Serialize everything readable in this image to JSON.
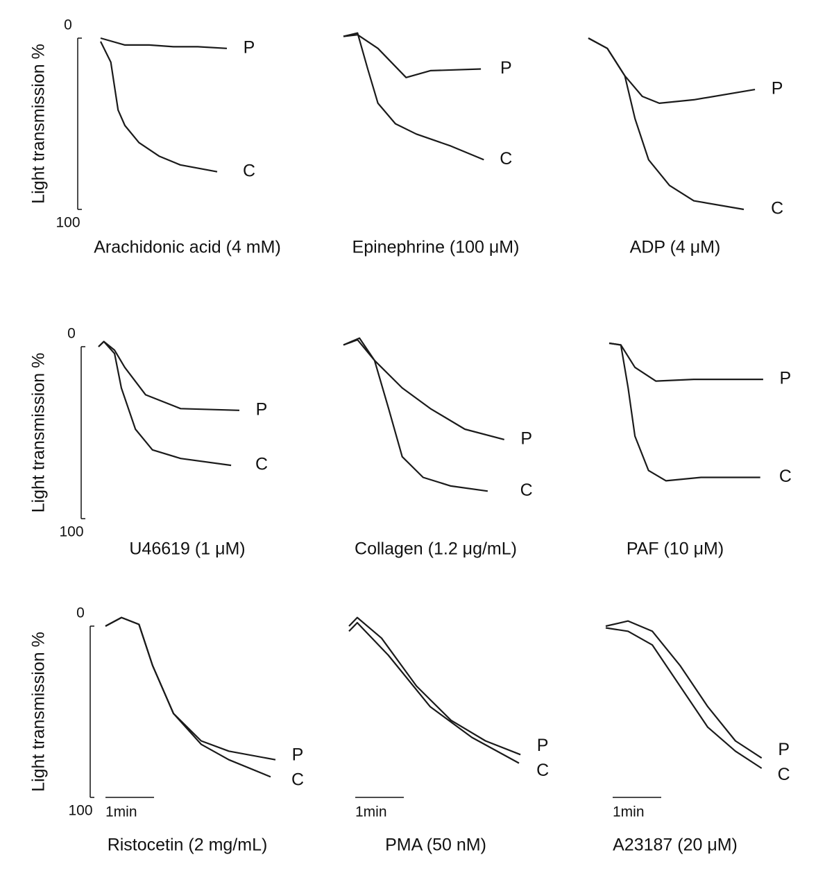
{
  "chart_data": [
    {
      "type": "line",
      "title": "Arachidonic acid (4 mM)",
      "ylabel": "Light transmission %",
      "xlim": [
        0,
        3.5
      ],
      "ylim": [
        100,
        0
      ],
      "yticks": [
        0,
        100
      ],
      "series": [
        {
          "name": "P",
          "color": "#1a1a1a",
          "x": [
            0,
            0.5,
            1,
            1.5,
            2,
            2.6
          ],
          "values": [
            0,
            4,
            4,
            5,
            5,
            6
          ]
        },
        {
          "name": "C",
          "color": "#1a1a1a",
          "x": [
            0,
            0.21,
            0.36,
            0.5,
            0.79,
            1.21,
            1.64,
            2.4
          ],
          "values": [
            2,
            14,
            42,
            51,
            61,
            69,
            74,
            78
          ]
        }
      ]
    },
    {
      "type": "line",
      "title": "Epinephrine (100 μM)",
      "xlim": [
        0,
        3.5
      ],
      "ylim": [
        100,
        0
      ],
      "series": [
        {
          "name": "P",
          "color": "#1a1a1a",
          "x": [
            0,
            0.29,
            0.71,
            1.29,
            1.79,
            2.83
          ],
          "values": [
            -1,
            -2,
            6,
            23,
            19,
            18
          ]
        },
        {
          "name": "C",
          "color": "#1a1a1a",
          "x": [
            0,
            0.29,
            0.5,
            0.71,
            1.07,
            1.5,
            2.21,
            2.89
          ],
          "values": [
            -1,
            -3,
            18,
            38,
            50,
            56,
            63,
            71
          ]
        }
      ]
    },
    {
      "type": "line",
      "title": "ADP (4 μM)",
      "xlim": [
        0,
        3.5
      ],
      "ylim": [
        100,
        0
      ],
      "series": [
        {
          "name": "P",
          "color": "#1a1a1a",
          "x": [
            0,
            0.39,
            0.75,
            1.11,
            1.46,
            2.17,
            3.43
          ],
          "values": [
            0,
            6,
            22,
            34,
            38,
            36,
            30
          ]
        },
        {
          "name": "C",
          "color": "#1a1a1a",
          "x": [
            0,
            0.39,
            0.75,
            0.96,
            1.24,
            1.67,
            2.17,
            3.2
          ],
          "values": [
            0,
            6,
            22,
            47,
            71,
            86,
            95,
            100
          ]
        }
      ]
    },
    {
      "type": "line",
      "title": "U46619 (1 μM)",
      "ylabel": "Light transmission %",
      "xlim": [
        0,
        3.5
      ],
      "ylim": [
        100,
        0
      ],
      "yticks": [
        0,
        100
      ],
      "series": [
        {
          "name": "P",
          "color": "#1a1a1a",
          "x": [
            0,
            0.11,
            0.33,
            0.54,
            0.97,
            1.69,
            2.9
          ],
          "values": [
            0,
            -3,
            2,
            12,
            28,
            36,
            37
          ]
        },
        {
          "name": "C",
          "color": "#1a1a1a",
          "x": [
            0,
            0.11,
            0.33,
            0.47,
            0.76,
            1.11,
            1.69,
            2.73
          ],
          "values": [
            0,
            -3,
            4,
            24,
            48,
            60,
            65,
            69
          ]
        }
      ]
    },
    {
      "type": "line",
      "title": "Collagen (1.2 μg/mL)",
      "xlim": [
        0,
        3.5
      ],
      "ylim": [
        100,
        0
      ],
      "series": [
        {
          "name": "P",
          "color": "#1a1a1a",
          "x": [
            0,
            0.29,
            0.64,
            1.21,
            1.79,
            2.5,
            3.31
          ],
          "values": [
            -1,
            -4,
            8,
            24,
            36,
            48,
            54
          ]
        },
        {
          "name": "C",
          "color": "#1a1a1a",
          "x": [
            0,
            0.33,
            0.64,
            0.93,
            1.21,
            1.64,
            2.21,
            2.97
          ],
          "values": [
            -1,
            -5,
            8,
            36,
            64,
            76,
            81,
            84
          ]
        }
      ]
    },
    {
      "type": "line",
      "title": "PAF (10 μM)",
      "xlim": [
        0,
        3.5
      ],
      "ylim": [
        100,
        0
      ],
      "series": [
        {
          "name": "P",
          "color": "#1a1a1a",
          "x": [
            0,
            0.24,
            0.53,
            0.96,
            1.74,
            3.17
          ],
          "values": [
            -2,
            -1,
            12,
            20,
            19,
            19
          ]
        },
        {
          "name": "C",
          "color": "#1a1a1a",
          "x": [
            0,
            0.24,
            0.39,
            0.53,
            0.81,
            1.17,
            1.89,
            3.11
          ],
          "values": [
            -2,
            -1,
            24,
            52,
            72,
            78,
            76,
            76
          ]
        }
      ]
    },
    {
      "type": "line",
      "title": "Ristocetin (2 mg/mL)",
      "ylabel": "Light transmission %",
      "xlim": [
        0,
        3.5
      ],
      "ylim": [
        100,
        0
      ],
      "yticks": [
        0,
        100
      ],
      "scale_bar": {
        "value": 1,
        "label": "1min"
      },
      "series": [
        {
          "name": "P",
          "color": "#1a1a1a",
          "x": [
            0,
            0.33,
            0.69,
            0.97,
            1.4,
            1.97,
            2.54,
            3.5
          ],
          "values": [
            0,
            -5,
            -1,
            23,
            51,
            67,
            73,
            78
          ]
        },
        {
          "name": "C",
          "color": "#1a1a1a",
          "x": [
            0,
            0.33,
            0.69,
            0.97,
            1.4,
            1.97,
            2.54,
            3.4
          ],
          "values": [
            0,
            -5,
            -1,
            23,
            51,
            69,
            78,
            88
          ]
        }
      ]
    },
    {
      "type": "line",
      "title": "PMA (50 nM)",
      "xlim": [
        0,
        3.5
      ],
      "ylim": [
        100,
        0
      ],
      "scale_bar": {
        "value": 1,
        "label": "1min"
      },
      "series": [
        {
          "name": "P",
          "color": "#1a1a1a",
          "x": [
            0,
            0.17,
            0.67,
            1.39,
            2.1,
            2.81,
            3.53
          ],
          "values": [
            0,
            -5,
            7,
            35,
            55,
            67,
            75
          ]
        },
        {
          "name": "C",
          "color": "#1a1a1a",
          "x": [
            0,
            0.17,
            0.81,
            1.67,
            2.53,
            3.5
          ],
          "values": [
            3,
            -2,
            17,
            47,
            65,
            80
          ]
        }
      ]
    },
    {
      "type": "line",
      "title": "A23187 (20 μM)",
      "xlim": [
        0,
        3.5
      ],
      "ylim": [
        100,
        0
      ],
      "scale_bar": {
        "value": 1,
        "label": "1min"
      },
      "series": [
        {
          "name": "P",
          "color": "#1a1a1a",
          "x": [
            0,
            0.46,
            0.96,
            1.53,
            2.1,
            2.67,
            3.21
          ],
          "values": [
            0,
            -3,
            3,
            23,
            47,
            67,
            77
          ]
        },
        {
          "name": "C",
          "color": "#1a1a1a",
          "x": [
            0,
            0.46,
            0.96,
            1.53,
            2.1,
            2.67,
            3.21
          ],
          "values": [
            1,
            3,
            11,
            35,
            59,
            73,
            83
          ]
        }
      ]
    }
  ]
}
